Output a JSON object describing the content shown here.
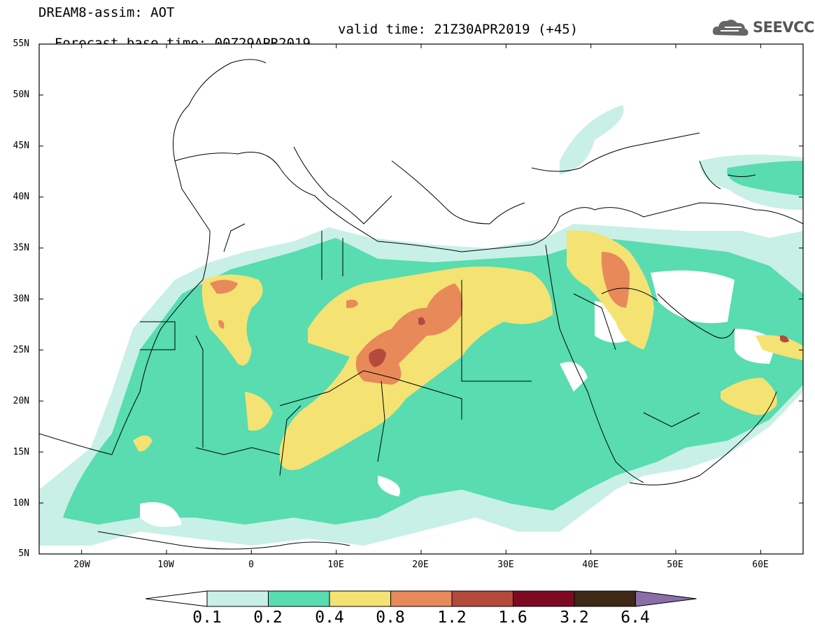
{
  "header": {
    "line1": "DREAM8-assim: AOT",
    "line2": "Forecast base time: 00Z29APR2019",
    "valid": "valid time: 21Z30APR2019 (+45)",
    "logo": "SEEVCCC"
  },
  "map": {
    "lat_labels": [
      "55N",
      "50N",
      "45N",
      "40N",
      "35N",
      "30N",
      "25N",
      "20N",
      "15N",
      "10N",
      "5N"
    ],
    "lon_labels": [
      "20W",
      "10W",
      "0",
      "10E",
      "20E",
      "30E",
      "40E",
      "50E",
      "60E"
    ],
    "lon_range": [
      -25,
      65
    ],
    "lat_range": [
      5,
      55
    ]
  },
  "colorbar": {
    "labels": [
      "0.1",
      "0.2",
      "0.4",
      "0.8",
      "1.2",
      "1.6",
      "3.2",
      "6.4"
    ],
    "colors": {
      "c0": "#ffffff",
      "c1": "#c8f0e6",
      "c2": "#58dcb0",
      "c3": "#f4e273",
      "c4": "#e8895a",
      "c5": "#b34a3c",
      "c6": "#7d0a22",
      "c7": "#3e2816",
      "c8": "#8a6ea8"
    }
  }
}
